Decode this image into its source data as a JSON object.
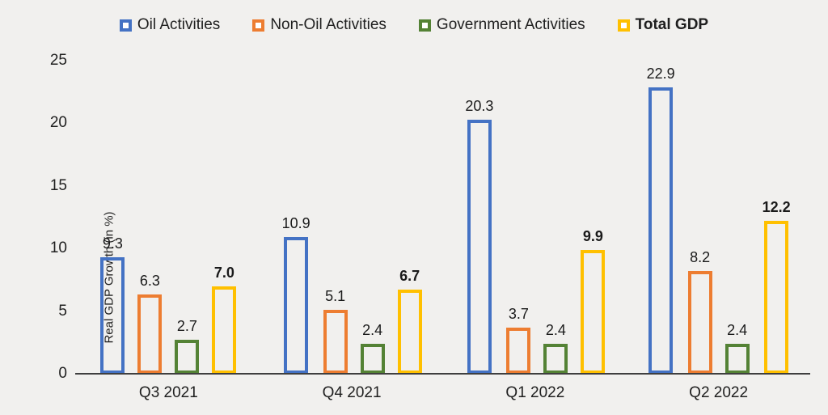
{
  "background": "#f1f0ee",
  "axis_color": "#3f3f3f",
  "y_axis": {
    "label": "Real GDP Growth (in %)",
    "ticks": [
      0,
      5,
      10,
      15,
      20,
      25
    ]
  },
  "chart_data": {
    "type": "bar",
    "title": "",
    "categories": [
      "Q3 2021",
      "Q4 2021",
      "Q1 2022",
      "Q2 2022"
    ],
    "series": [
      {
        "name": "Oil Activities",
        "color": "#4472C4",
        "bold_labels": false,
        "values": [
          9.3,
          10.9,
          20.3,
          22.9
        ]
      },
      {
        "name": "Non-Oil Activities",
        "color": "#ED7D31",
        "bold_labels": false,
        "values": [
          6.3,
          5.1,
          3.7,
          8.2
        ]
      },
      {
        "name": "Government Activities",
        "color": "#548235",
        "bold_labels": false,
        "values": [
          2.7,
          2.4,
          2.4,
          2.4
        ]
      },
      {
        "name": "Total GDP",
        "color": "#FFC000",
        "bold_labels": true,
        "values": [
          7.0,
          6.7,
          9.9,
          12.2
        ]
      }
    ],
    "xlabel": "",
    "ylabel": "Real GDP Growth (in %)",
    "ylim": [
      0,
      25
    ],
    "grid": false,
    "legend_position": "top",
    "bar_style": "hollow-outline"
  }
}
